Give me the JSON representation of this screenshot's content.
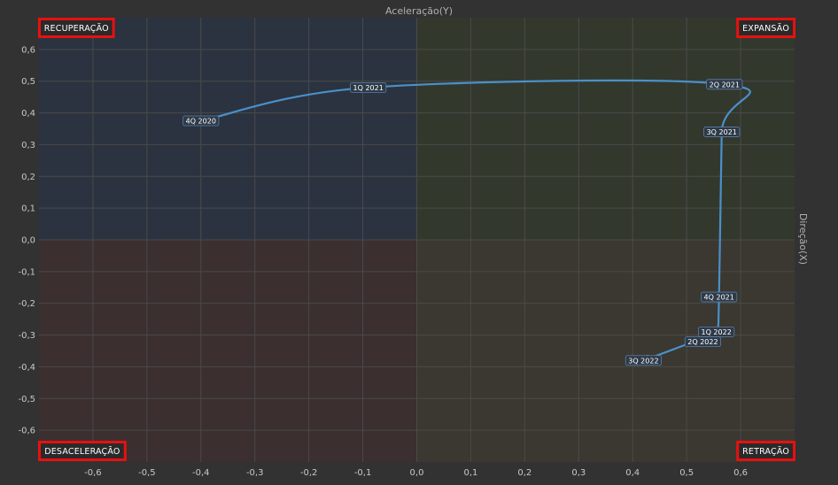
{
  "chart_data": {
    "type": "line",
    "title": "",
    "xlabel": "Direção(X)",
    "ylabel": "Aceleração(Y)",
    "xlim": [
      -0.7,
      0.7
    ],
    "ylim": [
      -0.7,
      0.7
    ],
    "x_ticks": [
      -0.6,
      -0.5,
      -0.4,
      -0.3,
      -0.2,
      -0.1,
      0.0,
      0.1,
      0.2,
      0.3,
      0.4,
      0.5,
      0.6
    ],
    "y_ticks": [
      0.6,
      0.5,
      0.4,
      0.3,
      0.2,
      0.1,
      0.0,
      -0.1,
      -0.2,
      -0.3,
      -0.4,
      -0.5,
      -0.6
    ],
    "x_tick_labels": [
      "-0,6",
      "-0,5",
      "-0,4",
      "-0,3",
      "-0,2",
      "-0,1",
      "0,0",
      "0,1",
      "0,2",
      "0,3",
      "0,4",
      "0,5",
      "0,6"
    ],
    "y_tick_labels": [
      "0,6",
      "0,5",
      "0,4",
      "0,3",
      "0,2",
      "0,1",
      "0,0",
      "-0,1",
      "-0,2",
      "-0,3",
      "-0,4",
      "-0,5",
      "-0,6"
    ],
    "grid": true,
    "series": [
      {
        "points": [
          {
            "label": "4Q 2020",
            "x": -0.4,
            "y": 0.375
          },
          {
            "label": "1Q 2021",
            "x": -0.09,
            "y": 0.48
          },
          {
            "label": "2Q 2021",
            "x": 0.57,
            "y": 0.49
          },
          {
            "label": "3Q 2021",
            "x": 0.565,
            "y": 0.34
          },
          {
            "label": "4Q 2021",
            "x": 0.56,
            "y": -0.18
          },
          {
            "label": "1Q 2022",
            "x": 0.555,
            "y": -0.29
          },
          {
            "label": "2Q 2022",
            "x": 0.53,
            "y": -0.31
          },
          {
            "label": "3Q 2022",
            "x": 0.42,
            "y": -0.38
          }
        ]
      }
    ],
    "quadrants": {
      "top_left": "RECUPERAÇÃO",
      "top_right": "EXPANSÃO",
      "bottom_left": "DESACELERAÇÃO",
      "bottom_right": "RETRAÇÃO"
    },
    "colors": {
      "background": "#323232",
      "q_top_left": "#2b3340",
      "q_top_right": "#33382d",
      "q_bottom_left": "#3b2f2f",
      "q_bottom_right": "#3a3830",
      "grid": "#4a4a4a",
      "line": "#4a90c8",
      "label_border": "#e81010"
    }
  }
}
